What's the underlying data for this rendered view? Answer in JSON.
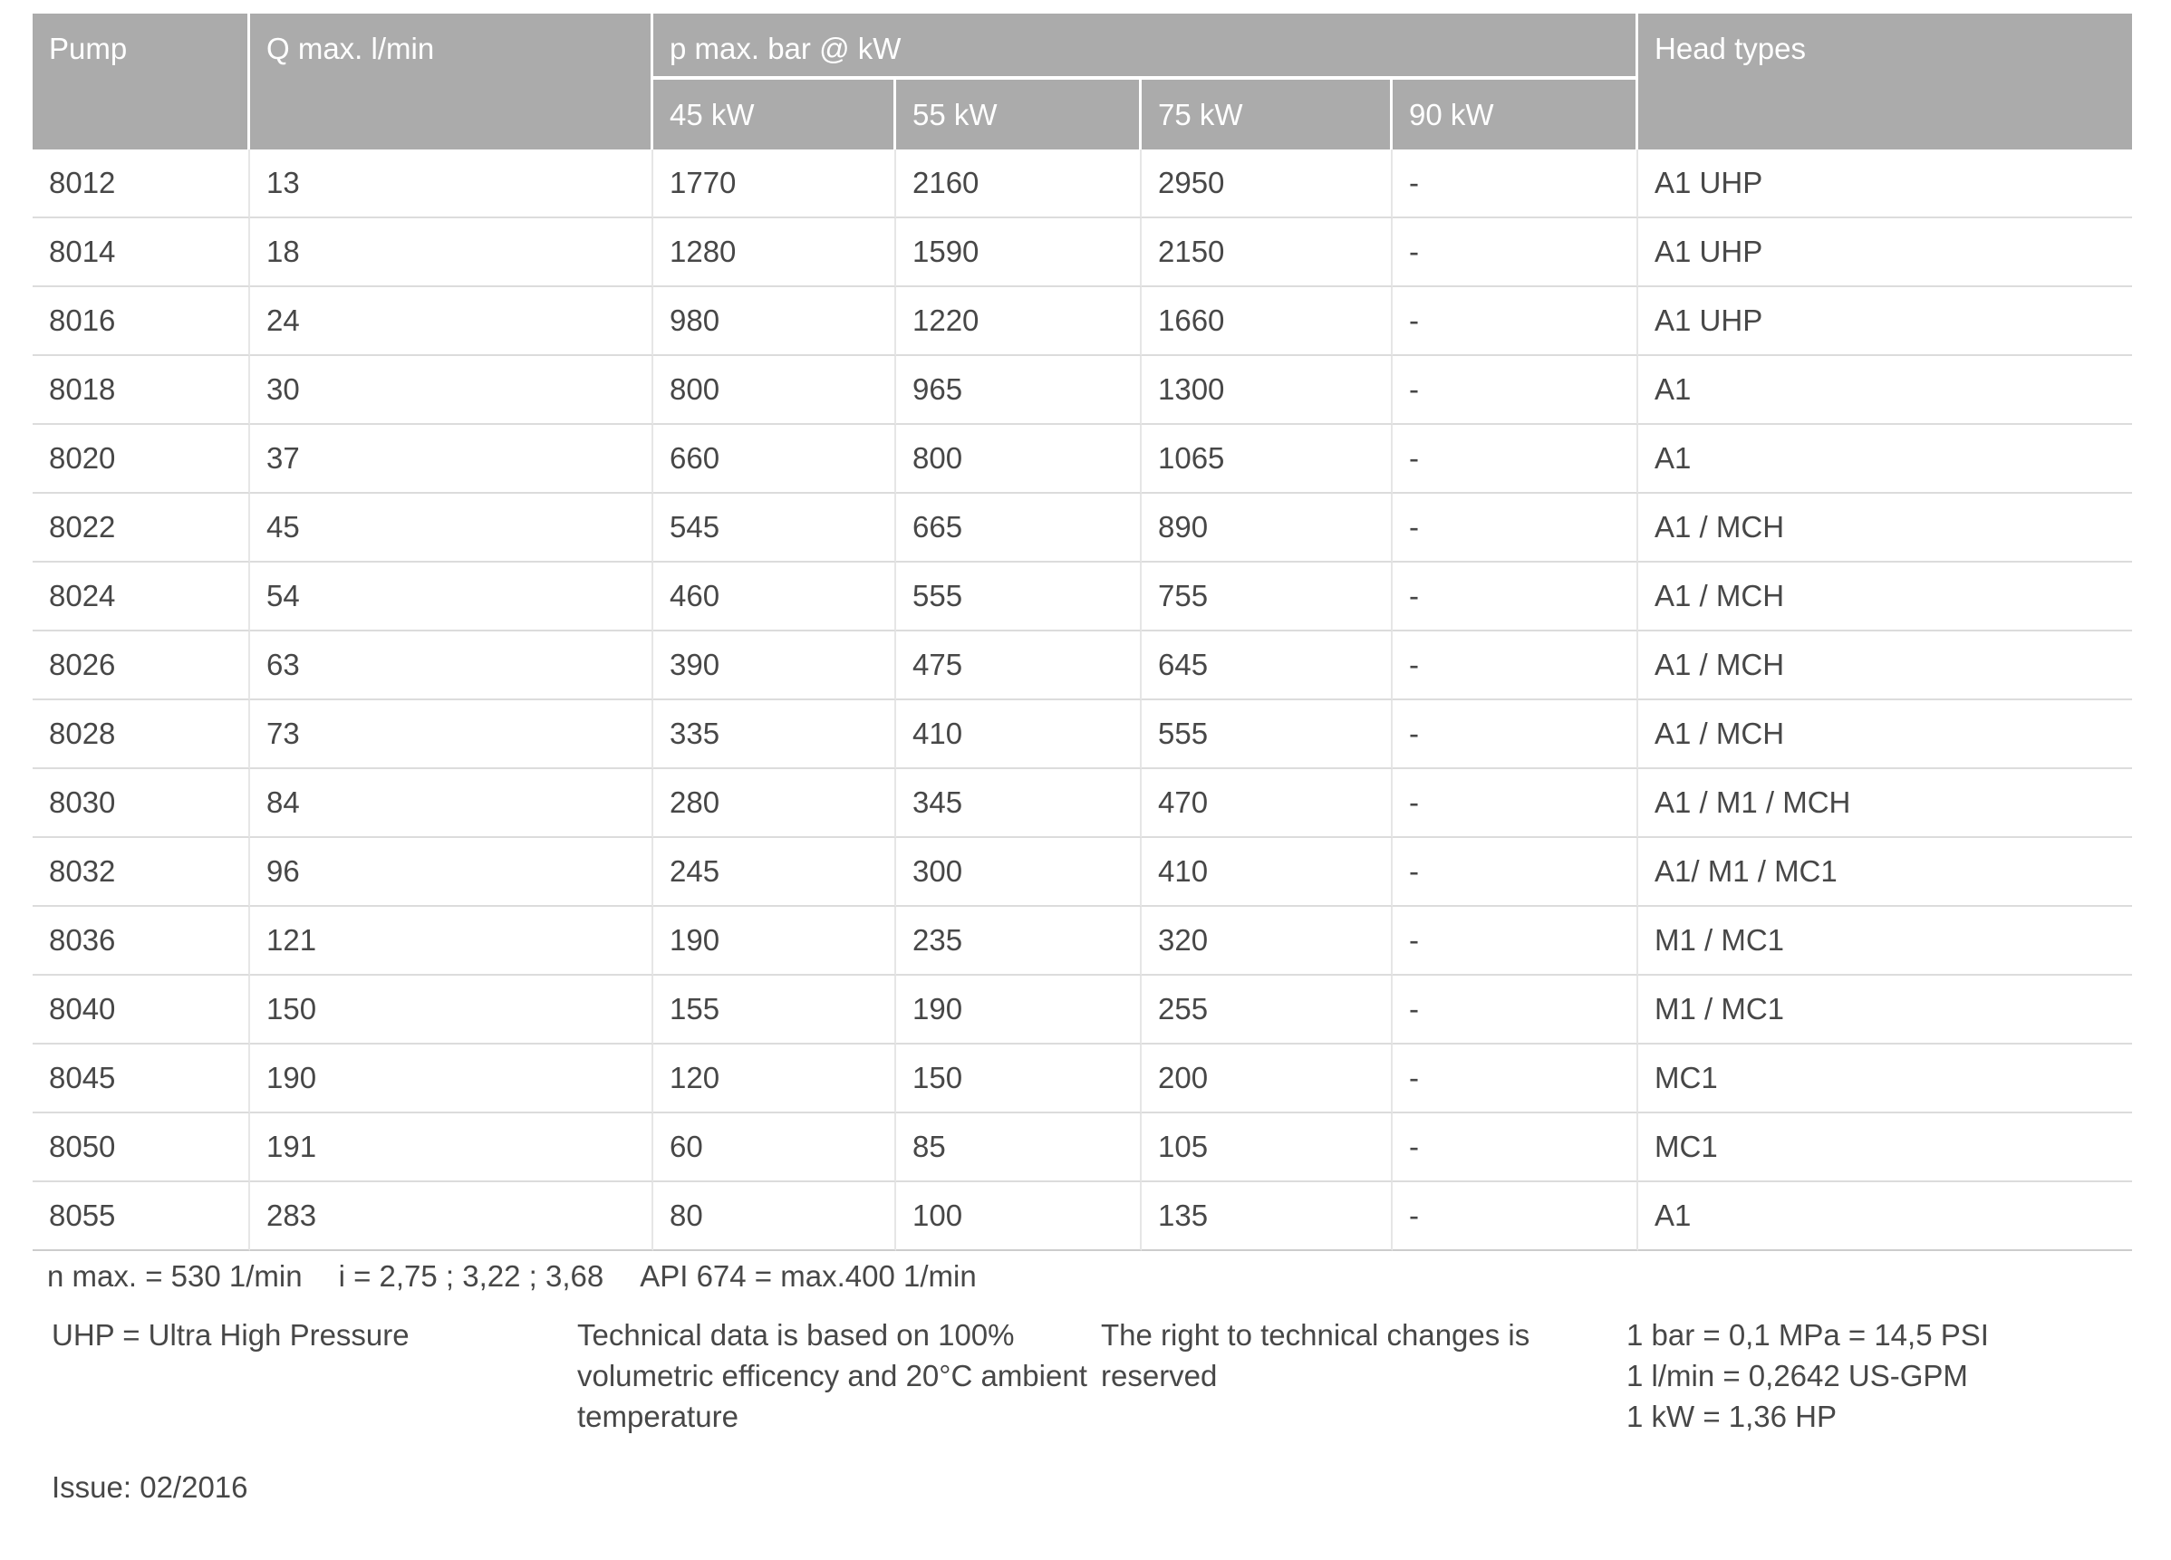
{
  "table": {
    "headers": {
      "pump": "Pump",
      "q_max": "Q max. l/min",
      "p_max_group": "p max. bar @ kW",
      "kw_columns": [
        "45 kW",
        "55 kW",
        "75 kW",
        "90 kW"
      ],
      "head_types": "Head types"
    },
    "rows": [
      {
        "pump": "8012",
        "q": "13",
        "p45": "1770",
        "p55": "2160",
        "p75": "2950",
        "p90": "-",
        "head": "A1 UHP"
      },
      {
        "pump": "8014",
        "q": "18",
        "p45": "1280",
        "p55": "1590",
        "p75": "2150",
        "p90": "-",
        "head": "A1 UHP"
      },
      {
        "pump": "8016",
        "q": "24",
        "p45": "980",
        "p55": "1220",
        "p75": "1660",
        "p90": "-",
        "head": "A1 UHP"
      },
      {
        "pump": "8018",
        "q": "30",
        "p45": "800",
        "p55": "965",
        "p75": "1300",
        "p90": "-",
        "head": "A1"
      },
      {
        "pump": "8020",
        "q": "37",
        "p45": "660",
        "p55": "800",
        "p75": "1065",
        "p90": "-",
        "head": "A1"
      },
      {
        "pump": "8022",
        "q": "45",
        "p45": "545",
        "p55": "665",
        "p75": "890",
        "p90": "-",
        "head": "A1 / MCH"
      },
      {
        "pump": "8024",
        "q": "54",
        "p45": "460",
        "p55": "555",
        "p75": "755",
        "p90": "-",
        "head": "A1 / MCH"
      },
      {
        "pump": "8026",
        "q": "63",
        "p45": "390",
        "p55": "475",
        "p75": "645",
        "p90": "-",
        "head": "A1 / MCH"
      },
      {
        "pump": "8028",
        "q": "73",
        "p45": "335",
        "p55": "410",
        "p75": "555",
        "p90": "-",
        "head": "A1 / MCH"
      },
      {
        "pump": "8030",
        "q": "84",
        "p45": "280",
        "p55": "345",
        "p75": "470",
        "p90": "-",
        "head": "A1 / M1 / MCH"
      },
      {
        "pump": "8032",
        "q": "96",
        "p45": "245",
        "p55": "300",
        "p75": "410",
        "p90": "-",
        "head": "A1/ M1 / MC1"
      },
      {
        "pump": "8036",
        "q": "121",
        "p45": "190",
        "p55": "235",
        "p75": "320",
        "p90": "-",
        "head": "M1 / MC1"
      },
      {
        "pump": "8040",
        "q": "150",
        "p45": "155",
        "p55": "190",
        "p75": "255",
        "p90": "-",
        "head": "M1 / MC1"
      },
      {
        "pump": "8045",
        "q": "190",
        "p45": "120",
        "p55": "150",
        "p75": "200",
        "p90": "-",
        "head": "MC1"
      },
      {
        "pump": "8050",
        "q": "191",
        "p45": "60",
        "p55": "85",
        "p75": "105",
        "p90": "-",
        "head": "MC1"
      },
      {
        "pump": "8055",
        "q": "283",
        "p45": "80",
        "p55": "100",
        "p75": "135",
        "p90": "-",
        "head": "A1"
      }
    ]
  },
  "footnote": {
    "n_max": "n max. = 530 1/min",
    "ratios": "i = 2,75 ; 3,22 ; 3,68",
    "api": "API 674 = max.400 1/min"
  },
  "footer": {
    "uhp": "UHP = Ultra High Pressure",
    "technical_lines": [
      "Technical data is based on 100%",
      "volumetric efficency and 20°C ambient",
      "temperature"
    ],
    "rights": "The right to technical changes is reserved",
    "conversions": [
      "1 bar = 0,1 MPa = 14,5 PSI",
      "1 l/min = 0,2642 US-GPM",
      "1 kW = 1,36 HP"
    ]
  },
  "issue": "Issue: 02/2016",
  "colors": {
    "header_bg": "#ababab",
    "header_text": "#ffffff",
    "body_text": "#474747",
    "row_line": "#dcdcdc",
    "column_line": "#e6e6e6"
  }
}
